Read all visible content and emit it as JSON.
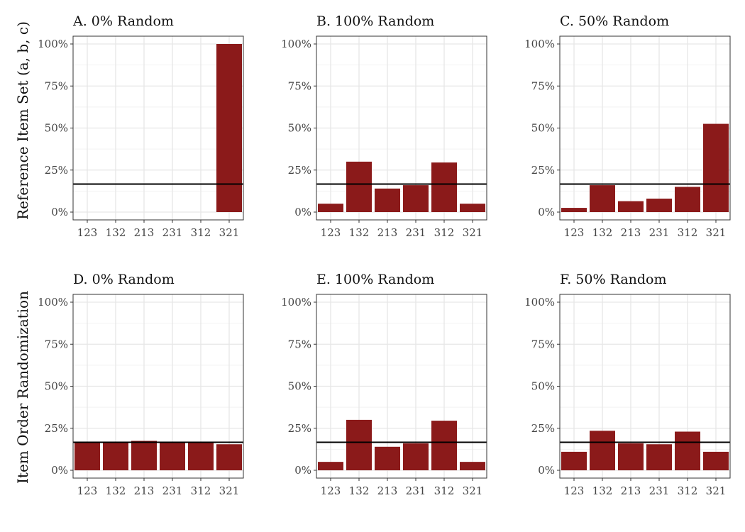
{
  "row_labels": [
    "Reference Item Set (a, b, c)",
    "Item Order Randomization"
  ],
  "colors": {
    "bar": "#8b1a1a",
    "reference_line": "#000000",
    "grid_major": "#e6e6e6",
    "grid_minor": "#f2f2f2",
    "panel_border": "#333333"
  },
  "chart_data": [
    {
      "type": "bar",
      "title": "A. 0% Random",
      "categories": [
        "123",
        "132",
        "213",
        "231",
        "312",
        "321"
      ],
      "values": [
        0,
        0,
        0,
        0,
        0,
        100
      ],
      "reference_line": 16.67,
      "ylim": [
        0,
        100
      ],
      "yticks": [
        "0%",
        "25%",
        "50%",
        "75%",
        "100%"
      ],
      "grid": true
    },
    {
      "type": "bar",
      "title": "B. 100% Random",
      "categories": [
        "123",
        "132",
        "213",
        "231",
        "312",
        "321"
      ],
      "values": [
        5,
        30,
        14,
        16,
        29.5,
        5
      ],
      "reference_line": 16.67,
      "ylim": [
        0,
        100
      ],
      "yticks": [
        "0%",
        "25%",
        "50%",
        "75%",
        "100%"
      ],
      "grid": true
    },
    {
      "type": "bar",
      "title": "C. 50% Random",
      "categories": [
        "123",
        "132",
        "213",
        "231",
        "312",
        "321"
      ],
      "values": [
        2.5,
        16,
        6.5,
        8,
        15,
        52.5
      ],
      "reference_line": 16.67,
      "ylim": [
        0,
        100
      ],
      "yticks": [
        "0%",
        "25%",
        "50%",
        "75%",
        "100%"
      ],
      "grid": true
    },
    {
      "type": "bar",
      "title": "D. 0% Random",
      "categories": [
        "123",
        "132",
        "213",
        "231",
        "312",
        "321"
      ],
      "values": [
        16.5,
        16.8,
        17.5,
        16.5,
        16.5,
        15.5
      ],
      "reference_line": 16.67,
      "ylim": [
        0,
        100
      ],
      "yticks": [
        "0%",
        "25%",
        "50%",
        "75%",
        "100%"
      ],
      "grid": true
    },
    {
      "type": "bar",
      "title": "E. 100% Random",
      "categories": [
        "123",
        "132",
        "213",
        "231",
        "312",
        "321"
      ],
      "values": [
        5,
        30,
        14,
        16,
        29.5,
        5
      ],
      "reference_line": 16.67,
      "ylim": [
        0,
        100
      ],
      "yticks": [
        "0%",
        "25%",
        "50%",
        "75%",
        "100%"
      ],
      "grid": true
    },
    {
      "type": "bar",
      "title": "F. 50% Random",
      "categories": [
        "123",
        "132",
        "213",
        "231",
        "312",
        "321"
      ],
      "values": [
        11,
        23.5,
        16,
        15.5,
        23,
        11
      ],
      "reference_line": 16.67,
      "ylim": [
        0,
        100
      ],
      "yticks": [
        "0%",
        "25%",
        "50%",
        "75%",
        "100%"
      ],
      "grid": true
    }
  ]
}
